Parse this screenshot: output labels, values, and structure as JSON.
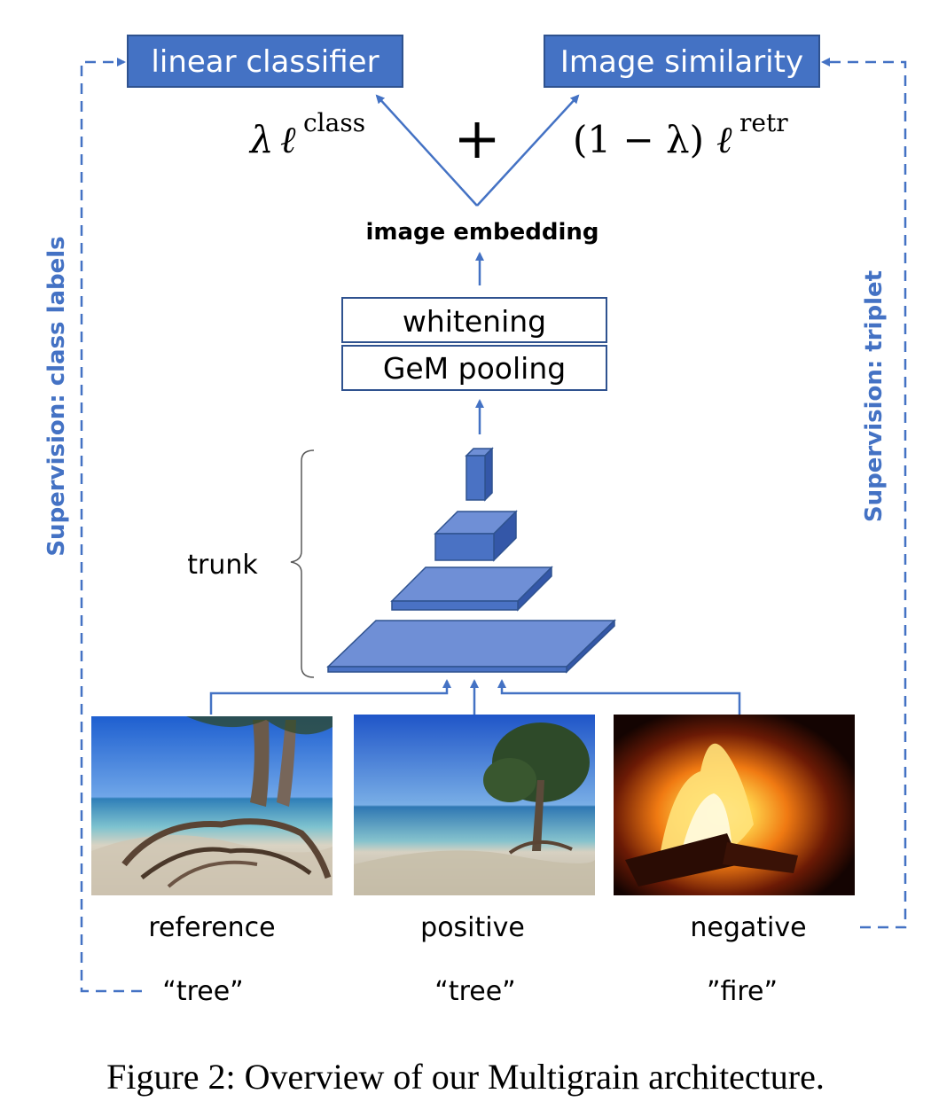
{
  "colors": {
    "accent": "#4472c4",
    "block_front": "#4a72c4",
    "block_top": "#6f8fd6",
    "block_side": "#3457a8"
  },
  "heads": {
    "left": "linear classifier",
    "right": "Image similarity"
  },
  "loss": {
    "lambda": "λ",
    "ell": "ℓ",
    "class_sup": "class",
    "plus": "+",
    "one_minus_lambda": "(1 − λ)",
    "retr_sup": "retr"
  },
  "embedding_label": "image embedding",
  "layers": {
    "whitening": "whitening",
    "pooling": "GeM pooling"
  },
  "trunk_label": "trunk",
  "supervision": {
    "left": "Supervision: class labels",
    "right": "Supervision: triplet"
  },
  "images": [
    {
      "role": "reference",
      "class_label": "“tree”"
    },
    {
      "role": "positive",
      "class_label": "“tree”"
    },
    {
      "role": "negative",
      "class_label": "”fire”"
    }
  ],
  "caption": "Figure 2:  Overview of our Multigrain architecture."
}
